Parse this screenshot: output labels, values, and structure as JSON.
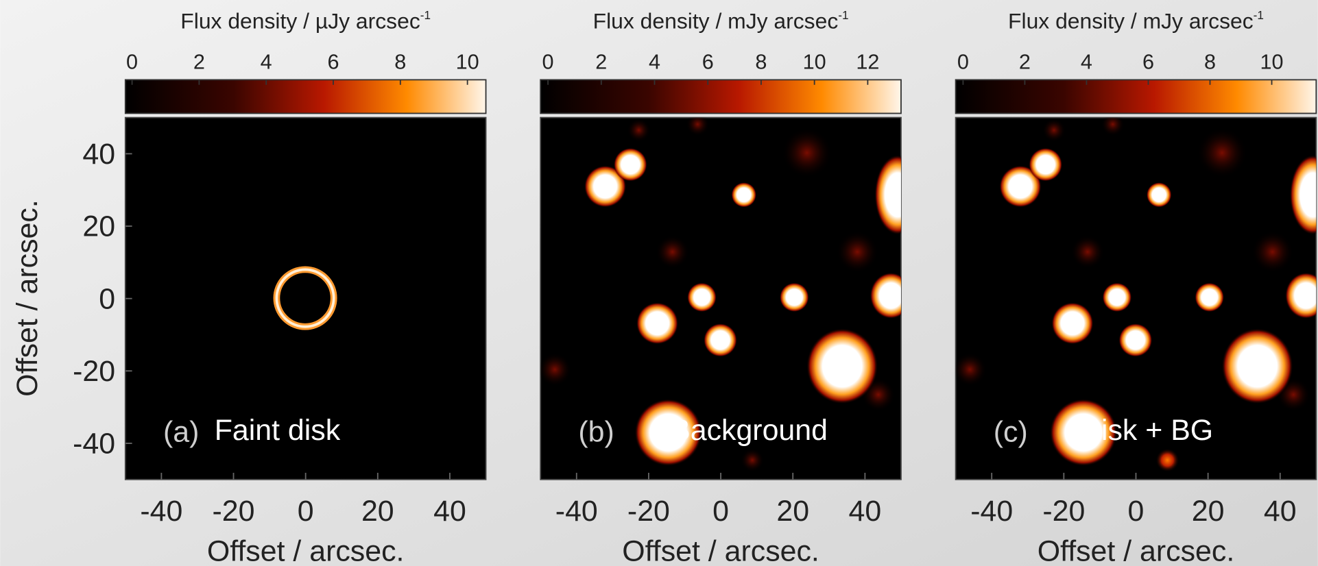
{
  "panels": [
    {
      "colorbar": {
        "label": "Flux density / µJy arcsec",
        "label_sup": "-1",
        "lim": [
          -0.2,
          10.55
        ],
        "ticks": [
          0,
          2,
          4,
          6,
          8,
          10
        ]
      },
      "xlim": [
        -50,
        50
      ],
      "xticks": [
        -40,
        -20,
        0,
        20,
        40
      ],
      "x_label": "Offset / arcsec.",
      "ylim": [
        -50,
        50
      ],
      "yticks": [
        -40,
        -20,
        0,
        20,
        40
      ],
      "y_label": "Offset / arcsec.",
      "tag": "(a)",
      "caption": "Faint disk"
    },
    {
      "colorbar": {
        "label": "Flux density / mJy arcsec",
        "label_sup": "-1",
        "lim": [
          -0.28,
          13.25
        ],
        "ticks": [
          0,
          2,
          4,
          6,
          8,
          10,
          12
        ]
      },
      "xlim": [
        -50,
        50
      ],
      "xticks": [
        -40,
        -20,
        0,
        20,
        40
      ],
      "x_label": "Offset / arcsec.",
      "tag": "(b)",
      "caption": "Background"
    },
    {
      "colorbar": {
        "label": "Flux density / mJy arcsec",
        "label_sup": "-1",
        "lim": [
          -0.24,
          11.44
        ],
        "ticks": [
          0,
          2,
          4,
          6,
          8,
          10
        ]
      },
      "xlim": [
        -50,
        50
      ],
      "xticks": [
        -40,
        -20,
        0,
        20,
        40
      ],
      "x_label": "Offset / arcsec.",
      "tag": "(c)",
      "caption": "Disk + BG"
    }
  ]
}
